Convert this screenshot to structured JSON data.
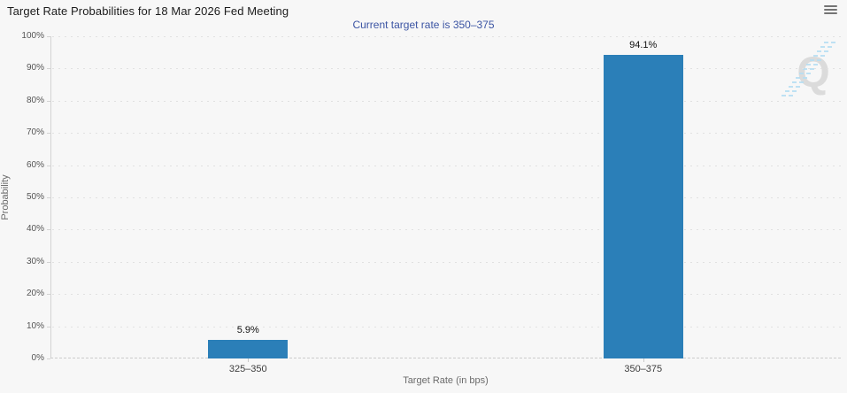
{
  "header": {
    "menu_icon": "hamburger-menu-icon"
  },
  "chart_data": {
    "type": "bar",
    "title": "Target Rate Probabilities for 18 Mar 2026 Fed Meeting",
    "subtitle": "Current target rate is 350–375",
    "categories": [
      "325–350",
      "350–375"
    ],
    "values": [
      5.9,
      94.1
    ],
    "value_labels": [
      "5.9%",
      "94.1%"
    ],
    "xlabel": "Target Rate (in bps)",
    "ylabel": "Probability",
    "ylim": [
      0,
      100
    ],
    "ytick_step": 10,
    "ytick_labels": [
      "0%",
      "10%",
      "20%",
      "30%",
      "40%",
      "50%",
      "60%",
      "70%",
      "80%",
      "90%",
      "100%"
    ],
    "grid": "dotted-horizontal",
    "legend": "none",
    "bar_color": "#2b7fb8",
    "watermark_letter": "Q"
  },
  "colors": {
    "background": "#f7f7f7",
    "bar": "#2b7fb8",
    "subtitle_text": "#3b54a3",
    "axis_line": "#d3d3d3",
    "grid_dots": "#e1e1e1",
    "watermark_gray": "#d8d8d8",
    "watermark_blue": "#aedcf2"
  }
}
